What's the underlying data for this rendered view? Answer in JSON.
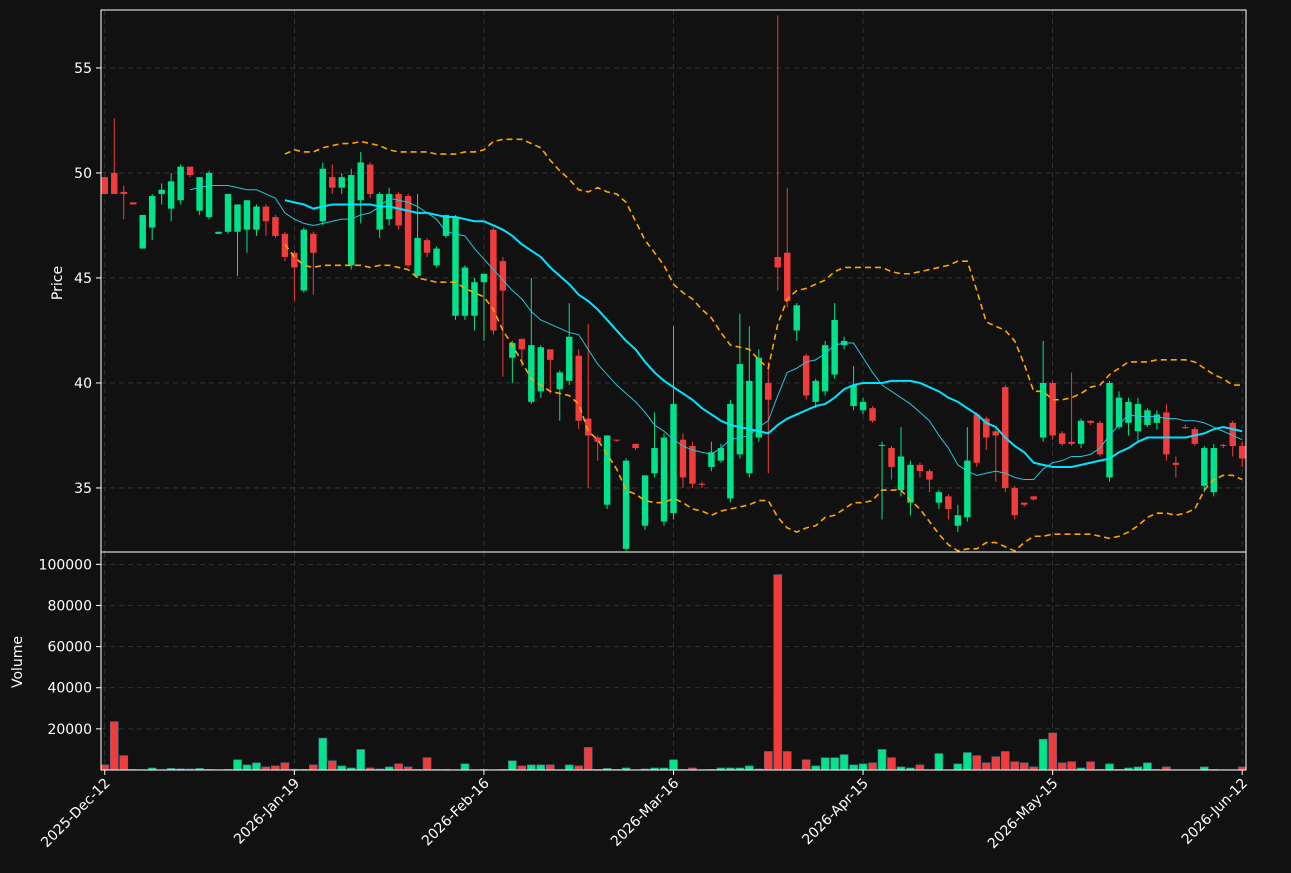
{
  "chart_data": [
    {
      "type": "candlestick",
      "ylabel": "Price",
      "ylim": [
        31.95,
        57.76
      ],
      "yticks": [
        35,
        40,
        45,
        50,
        55
      ],
      "xlim": [
        -0.4,
        120.4
      ],
      "grid": true,
      "up_color": "#00e38a",
      "down_color": "#f23c3c",
      "open": [
        49.8,
        50.0,
        49.1,
        48.6,
        46.4,
        47.4,
        49.0,
        48.3,
        48.7,
        50.3,
        48.2,
        47.9,
        47.1,
        47.2,
        47.2,
        47.3,
        47.3,
        48.4,
        47.9,
        47.1,
        46.2,
        44.4,
        47.1,
        47.7,
        49.8,
        49.3,
        45.6,
        48.7,
        50.4,
        47.3,
        47.8,
        49.0,
        48.9,
        45.1,
        46.8,
        45.6,
        47.0,
        43.2,
        43.2,
        43.2,
        44.8,
        47.3,
        45.8,
        41.2,
        42.1,
        39.1,
        39.6,
        41.6,
        39.7,
        40.1,
        41.3,
        38.3,
        37.4,
        34.2,
        37.3,
        32.1,
        37.1,
        33.2,
        35.7,
        33.4,
        33.8,
        37.3,
        37.0,
        35.2,
        36.0,
        36.3,
        34.5,
        36.6,
        35.7,
        37.4,
        40.0,
        46.0,
        46.2,
        42.5,
        41.3,
        39.1,
        39.6,
        40.4,
        41.8,
        38.9,
        38.7,
        38.8,
        37.0,
        36.9,
        34.9,
        34.3,
        36.1,
        35.8,
        34.3,
        34.6,
        33.2,
        33.6,
        38.5,
        38.3,
        37.7,
        39.8,
        35.0,
        34.3,
        34.6,
        37.4,
        40.0,
        37.6,
        37.2,
        37.1,
        38.2,
        38.1,
        35.5,
        37.9,
        38.1,
        37.7,
        38.0,
        38.1,
        38.6,
        36.2,
        37.9,
        37.8,
        35.1,
        34.8,
        37.05,
        38.1,
        37.0
      ],
      "high": [
        49.8,
        52.6,
        49.4,
        48.6,
        48.0,
        49.0,
        49.5,
        50.0,
        50.4,
        50.3,
        49.8,
        50.1,
        47.2,
        49.0,
        48.5,
        48.7,
        48.5,
        48.5,
        48.0,
        47.2,
        46.3,
        47.4,
        47.2,
        50.5,
        50.4,
        50.0,
        50.2,
        51.0,
        50.5,
        49.1,
        49.3,
        49.1,
        49.0,
        49.0,
        46.9,
        46.5,
        48.0,
        48.0,
        45.6,
        45.0,
        45.2,
        47.4,
        46.0,
        42.0,
        42.1,
        45.0,
        41.8,
        41.6,
        40.6,
        43.8,
        41.6,
        42.8,
        37.5,
        37.5,
        37.3,
        36.4,
        37.1,
        35.6,
        38.6,
        37.6,
        42.7,
        37.6,
        37.2,
        35.3,
        37.2,
        37.1,
        39.2,
        43.3,
        42.7,
        41.6,
        41.0,
        57.5,
        49.3,
        43.8,
        41.4,
        40.2,
        42.0,
        43.8,
        42.2,
        40.8,
        39.3,
        38.9,
        37.2,
        37.0,
        37.9,
        36.3,
        36.2,
        35.9,
        34.9,
        34.7,
        34.2,
        37.9,
        38.6,
        38.4,
        37.8,
        39.9,
        35.1,
        34.3,
        34.6,
        42.0,
        40.1,
        37.7,
        40.5,
        38.3,
        38.2,
        38.2,
        40.1,
        39.6,
        39.3,
        39.3,
        38.8,
        38.7,
        39.0,
        36.5,
        38.0,
        37.9,
        37.0,
        37.1,
        37.1,
        38.2,
        37.2
      ],
      "low": [
        49.0,
        49.0,
        47.8,
        48.5,
        46.4,
        46.8,
        48.5,
        47.7,
        48.5,
        49.8,
        48.0,
        47.8,
        47.1,
        47.1,
        45.1,
        46.2,
        47.0,
        47.0,
        46.9,
        45.8,
        43.9,
        44.3,
        44.2,
        47.5,
        49.0,
        49.0,
        45.4,
        47.6,
        48.8,
        46.9,
        47.5,
        47.3,
        45.5,
        45.0,
        46.0,
        45.5,
        46.9,
        43.0,
        43.0,
        42.5,
        42.0,
        42.3,
        40.3,
        40.0,
        40.8,
        39.0,
        39.3,
        39.5,
        38.2,
        39.9,
        37.8,
        35.0,
        36.3,
        34.0,
        37.2,
        32.0,
        36.8,
        33.0,
        35.5,
        33.2,
        33.5,
        35.0,
        35.0,
        35.0,
        35.8,
        36.2,
        34.3,
        36.4,
        35.5,
        37.2,
        35.7,
        44.4,
        43.6,
        42.0,
        39.2,
        38.8,
        39.4,
        40.2,
        41.6,
        38.7,
        38.5,
        38.1,
        33.5,
        35.4,
        34.6,
        33.7,
        35.5,
        34.8,
        34.0,
        33.5,
        32.9,
        33.4,
        36.0,
        36.8,
        35.3,
        34.8,
        33.5,
        34.1,
        34.4,
        37.2,
        37.3,
        37.0,
        37.0,
        36.9,
        38.0,
        36.5,
        35.3,
        37.8,
        37.5,
        37.2,
        37.9,
        37.8,
        36.3,
        35.5,
        37.8,
        37.0,
        34.8,
        34.6,
        36.9,
        36.5,
        36.0
      ],
      "close": [
        49.0,
        49.0,
        49.0,
        48.5,
        48.0,
        48.9,
        49.2,
        49.6,
        50.3,
        49.9,
        49.8,
        50.0,
        47.2,
        49.0,
        48.5,
        48.7,
        48.4,
        47.7,
        47.0,
        46.0,
        45.5,
        47.3,
        46.2,
        50.2,
        49.3,
        49.8,
        49.9,
        50.5,
        49.0,
        49.0,
        49.0,
        47.5,
        45.6,
        46.9,
        46.2,
        46.4,
        48.0,
        47.9,
        45.5,
        44.8,
        45.2,
        42.5,
        44.4,
        41.9,
        41.6,
        41.8,
        41.7,
        41.1,
        40.5,
        42.2,
        38.2,
        37.5,
        37.2,
        37.5,
        37.25,
        36.3,
        36.9,
        35.6,
        36.9,
        37.4,
        39.0,
        35.5,
        35.2,
        35.15,
        36.7,
        36.9,
        39.0,
        40.9,
        40.1,
        41.2,
        39.2,
        45.5,
        43.9,
        43.7,
        39.4,
        40.1,
        41.8,
        43.0,
        42.0,
        39.9,
        39.1,
        38.2,
        37.05,
        36.0,
        36.5,
        36.1,
        35.8,
        35.4,
        34.8,
        34.0,
        33.7,
        36.3,
        36.2,
        37.4,
        37.5,
        35.0,
        33.7,
        34.2,
        34.45,
        40.0,
        37.5,
        37.1,
        37.1,
        38.2,
        38.1,
        36.6,
        40.0,
        39.3,
        39.1,
        39.0,
        38.7,
        38.5,
        36.6,
        36.1,
        37.85,
        37.1,
        36.9,
        36.9,
        37.0,
        37.0,
        36.4
      ],
      "lines": [
        {
          "color": "#26c6da",
          "width": 1,
          "dashed": false,
          "values": [
            null,
            null,
            null,
            null,
            null,
            null,
            null,
            null,
            null,
            49.2,
            49.3,
            49.4,
            49.4,
            49.4,
            49.3,
            49.2,
            49.2,
            49.0,
            48.8,
            48.1,
            47.8,
            47.6,
            47.5,
            47.6,
            47.7,
            47.8,
            47.8,
            48.0,
            48.1,
            48.4,
            48.8,
            48.7,
            48.6,
            48.4,
            48.1,
            47.8,
            47.2,
            47.1,
            47.0,
            46.4,
            45.9,
            45.4,
            44.9,
            44.4,
            44.0,
            43.4,
            43.0,
            42.8,
            42.6,
            42.4,
            42.3,
            41.6,
            40.9,
            40.4,
            39.9,
            39.5,
            39.1,
            38.6,
            38.0,
            37.7,
            37.3,
            37.0,
            36.8,
            36.7,
            36.6,
            36.9,
            37.3,
            37.4,
            37.5,
            37.9,
            38.2,
            39.4,
            40.5,
            40.7,
            41.0,
            41.1,
            41.4,
            41.8,
            41.9,
            41.9,
            41.2,
            40.5,
            39.9,
            39.6,
            39.3,
            39.0,
            38.6,
            38.2,
            37.5,
            36.9,
            36.1,
            35.8,
            35.6,
            35.7,
            35.8,
            35.7,
            35.5,
            35.4,
            35.4,
            35.9,
            36.2,
            36.3,
            36.5,
            36.5,
            36.6,
            36.9,
            37.5,
            38.0,
            38.5,
            38.4,
            38.4,
            38.4,
            38.3,
            38.3,
            38.2,
            38.2,
            38.1,
            37.9,
            37.7,
            37.5,
            37.3
          ]
        },
        {
          "color": "#00e5ff",
          "width": 2,
          "dashed": false,
          "values": [
            null,
            null,
            null,
            null,
            null,
            null,
            null,
            null,
            null,
            null,
            null,
            null,
            null,
            null,
            null,
            null,
            null,
            null,
            null,
            48.7,
            48.6,
            48.5,
            48.3,
            48.4,
            48.5,
            48.5,
            48.5,
            48.5,
            48.5,
            48.4,
            48.4,
            48.3,
            48.2,
            48.1,
            48.1,
            48.0,
            47.9,
            47.9,
            47.8,
            47.7,
            47.7,
            47.5,
            47.3,
            47.0,
            46.6,
            46.3,
            46.0,
            45.5,
            45.1,
            44.7,
            44.2,
            43.9,
            43.5,
            43.0,
            42.5,
            42.0,
            41.6,
            41.0,
            40.5,
            40.1,
            39.8,
            39.5,
            39.2,
            38.8,
            38.5,
            38.2,
            38.0,
            37.9,
            37.8,
            37.7,
            37.6,
            38.0,
            38.3,
            38.5,
            38.7,
            38.9,
            39.0,
            39.3,
            39.7,
            39.9,
            40.0,
            40.0,
            40.0,
            40.1,
            40.1,
            40.1,
            40.0,
            39.8,
            39.6,
            39.3,
            39.1,
            38.8,
            38.5,
            38.1,
            37.9,
            37.4,
            37.0,
            36.7,
            36.2,
            36.1,
            36.0,
            36.0,
            36.0,
            36.1,
            36.2,
            36.3,
            36.4,
            36.7,
            36.9,
            37.2,
            37.4,
            37.4,
            37.4,
            37.4,
            37.4,
            37.5,
            37.6,
            37.8,
            37.9,
            37.8,
            37.7
          ]
        },
        {
          "color": "#ffa500",
          "width": 1.6,
          "dashed": true,
          "values": [
            null,
            null,
            null,
            null,
            null,
            null,
            null,
            null,
            null,
            null,
            null,
            null,
            null,
            null,
            null,
            null,
            null,
            null,
            null,
            50.9,
            51.1,
            51.0,
            51.0,
            51.2,
            51.3,
            51.4,
            51.4,
            51.5,
            51.4,
            51.3,
            51.1,
            51.0,
            51.0,
            51.0,
            51.0,
            50.9,
            50.9,
            50.9,
            51.0,
            51.0,
            51.1,
            51.5,
            51.6,
            51.6,
            51.6,
            51.4,
            51.2,
            50.6,
            50.1,
            49.7,
            49.2,
            49.1,
            49.3,
            49.1,
            49.0,
            48.6,
            47.7,
            46.8,
            46.2,
            45.6,
            44.7,
            44.3,
            44.0,
            43.5,
            43.1,
            42.4,
            41.8,
            41.7,
            41.6,
            41.1,
            40.7,
            42.8,
            44.0,
            44.4,
            44.5,
            44.7,
            44.9,
            45.3,
            45.5,
            45.5,
            45.5,
            45.5,
            45.5,
            45.3,
            45.2,
            45.2,
            45.3,
            45.4,
            45.5,
            45.6,
            45.8,
            45.8,
            44.4,
            42.9,
            42.7,
            42.5,
            42.0,
            40.9,
            39.6,
            39.6,
            39.2,
            39.2,
            39.3,
            39.5,
            39.8,
            39.9,
            40.4,
            40.7,
            41.0,
            41.0,
            41.0,
            41.1,
            41.1,
            41.1,
            41.1,
            41.0,
            40.7,
            40.4,
            40.2,
            39.9,
            39.9
          ]
        },
        {
          "color": "#ffa500",
          "width": 1.6,
          "dashed": true,
          "values": [
            null,
            null,
            null,
            null,
            null,
            null,
            null,
            null,
            null,
            null,
            null,
            null,
            null,
            null,
            null,
            null,
            null,
            null,
            null,
            46.6,
            46.0,
            45.6,
            45.5,
            45.6,
            45.6,
            45.6,
            45.6,
            45.6,
            45.5,
            45.6,
            45.6,
            45.5,
            45.4,
            45.0,
            44.9,
            44.8,
            44.8,
            44.8,
            44.5,
            44.3,
            44.1,
            43.5,
            42.5,
            41.8,
            41.0,
            40.2,
            39.9,
            39.6,
            39.5,
            39.4,
            39.0,
            37.7,
            37.3,
            36.6,
            35.9,
            34.9,
            34.7,
            34.4,
            34.3,
            34.3,
            34.5,
            34.3,
            34.0,
            33.9,
            33.7,
            33.9,
            34.0,
            34.1,
            34.2,
            34.4,
            34.4,
            33.6,
            33.1,
            32.9,
            33.1,
            33.2,
            33.6,
            33.7,
            34.0,
            34.3,
            34.3,
            34.4,
            34.9,
            34.9,
            34.9,
            34.4,
            34.0,
            33.4,
            32.8,
            32.3,
            32.0,
            32.1,
            32.1,
            32.4,
            32.4,
            32.2,
            32.0,
            32.4,
            32.7,
            32.7,
            32.8,
            32.8,
            32.8,
            32.8,
            32.8,
            32.7,
            32.6,
            32.7,
            32.9,
            33.2,
            33.6,
            33.8,
            33.8,
            33.7,
            33.8,
            34.0,
            34.9,
            35.4,
            35.6,
            35.6,
            35.4
          ]
        }
      ]
    },
    {
      "type": "volume",
      "ylabel": "Volume",
      "ylim": [
        0,
        106000
      ],
      "yticks": [
        20000,
        40000,
        60000,
        80000,
        100000
      ],
      "xlim": [
        -0.4,
        120.4
      ],
      "grid": true,
      "xticks": [
        {
          "value": 0,
          "label": "2025-Dec-12"
        },
        {
          "value": 20,
          "label": "2026-Jan-19"
        },
        {
          "value": 40,
          "label": "2026-Feb-16"
        },
        {
          "value": 60,
          "label": "2026-Mar-16"
        },
        {
          "value": 80,
          "label": "2026-Apr-15"
        },
        {
          "value": 100,
          "label": "2026-May-15"
        },
        {
          "value": 120,
          "label": "2026-Jun-12"
        }
      ],
      "values": [
        2500,
        23500,
        7000,
        300,
        200,
        1000,
        200,
        800,
        600,
        500,
        800,
        300,
        200,
        300,
        5000,
        2500,
        3500,
        1500,
        2000,
        3500,
        400,
        300,
        2500,
        15500,
        4500,
        2000,
        1000,
        10000,
        1000,
        500,
        1500,
        3000,
        1500,
        300,
        6000,
        300,
        300,
        200,
        3000,
        200,
        300,
        200,
        300,
        4500,
        2000,
        2500,
        2500,
        2500,
        200,
        2500,
        2000,
        11000,
        300,
        800,
        300,
        1000,
        200,
        500,
        1000,
        1000,
        5000,
        300,
        1000,
        200,
        300,
        1000,
        1000,
        1000,
        2000,
        500,
        9000,
        95000,
        9000,
        300,
        5000,
        2000,
        6000,
        6000,
        7500,
        2500,
        3000,
        3500,
        10000,
        6000,
        1500,
        1000,
        2500,
        200,
        8000,
        200,
        3000,
        8500,
        7000,
        3500,
        6500,
        9000,
        4000,
        3500,
        1500,
        15000,
        18000,
        3500,
        4000,
        1000,
        4000,
        300,
        3000,
        300,
        1000,
        1500,
        3500,
        300,
        1500,
        200,
        200,
        200,
        1500,
        300,
        200,
        200,
        1500
      ]
    }
  ]
}
